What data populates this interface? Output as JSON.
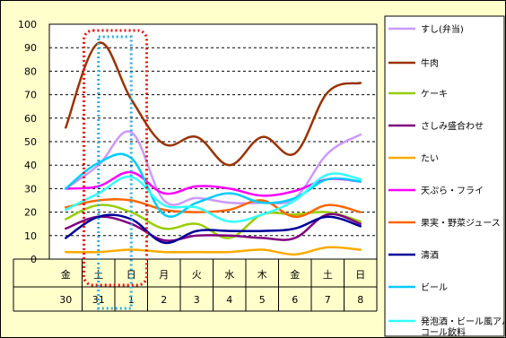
{
  "chart_data": {
    "type": "line",
    "title": "",
    "xlabel": "",
    "ylabel": "",
    "ylim": [
      0,
      100
    ],
    "yticks": [
      0,
      10,
      20,
      30,
      40,
      50,
      60,
      70,
      80,
      90,
      100
    ],
    "grid": true,
    "legend_position": "right",
    "categories": [
      {
        "weekday": "金",
        "day": "30"
      },
      {
        "weekday": "土",
        "day": "31"
      },
      {
        "weekday": "日",
        "day": "1"
      },
      {
        "weekday": "月",
        "day": "2"
      },
      {
        "weekday": "火",
        "day": "3"
      },
      {
        "weekday": "水",
        "day": "4"
      },
      {
        "weekday": "木",
        "day": "5"
      },
      {
        "weekday": "金",
        "day": "6"
      },
      {
        "weekday": "土",
        "day": "7"
      },
      {
        "weekday": "日",
        "day": "8"
      }
    ],
    "highlights": [
      {
        "start": "31",
        "end": "1",
        "color": "#ee1111",
        "style": "dotted"
      },
      {
        "start": "31",
        "end": "1",
        "color": "#33aadd",
        "style": "dotted"
      }
    ],
    "series": [
      {
        "name": "すし(弁当)",
        "color": "#cc99ff",
        "values": [
          30,
          40,
          54,
          25,
          26,
          24,
          24,
          26,
          45,
          53
        ]
      },
      {
        "name": "牛肉",
        "color": "#993300",
        "values": [
          56,
          92,
          68,
          49,
          52,
          40,
          52,
          45,
          71,
          75
        ]
      },
      {
        "name": "ケーキ",
        "color": "#99cc00",
        "values": [
          17,
          23,
          20,
          13,
          15,
          9,
          19,
          19,
          20,
          16
        ]
      },
      {
        "name": "さしみ盛合わせ",
        "color": "#800080",
        "values": [
          13,
          18,
          15,
          8,
          10,
          10,
          9,
          9,
          19,
          15
        ]
      },
      {
        "name": "たい",
        "color": "#ffaa00",
        "values": [
          3,
          3,
          4,
          3,
          3,
          3,
          4,
          2,
          5,
          4
        ]
      },
      {
        "name": "天ぷら・フライ",
        "color": "#ff00ff",
        "values": [
          30,
          31,
          37,
          28,
          31,
          30,
          27,
          29,
          34,
          33
        ]
      },
      {
        "name": "果実・野菜ジュース",
        "color": "#ff6600",
        "values": [
          22,
          25,
          25,
          21,
          20,
          21,
          25,
          18,
          23,
          20
        ]
      },
      {
        "name": "清酒",
        "color": "#000099",
        "values": [
          9,
          18,
          17,
          7,
          12,
          12,
          12,
          13,
          18,
          14
        ]
      },
      {
        "name": "ビール",
        "color": "#00ccff",
        "values": [
          30,
          41,
          43,
          19,
          24,
          28,
          24,
          26,
          34,
          33
        ]
      },
      {
        "name": "発泡酒・ビール風アルコール飲料",
        "color": "#33ffff",
        "values": [
          21,
          28,
          35,
          23,
          22,
          16,
          19,
          25,
          36,
          34
        ]
      }
    ]
  }
}
